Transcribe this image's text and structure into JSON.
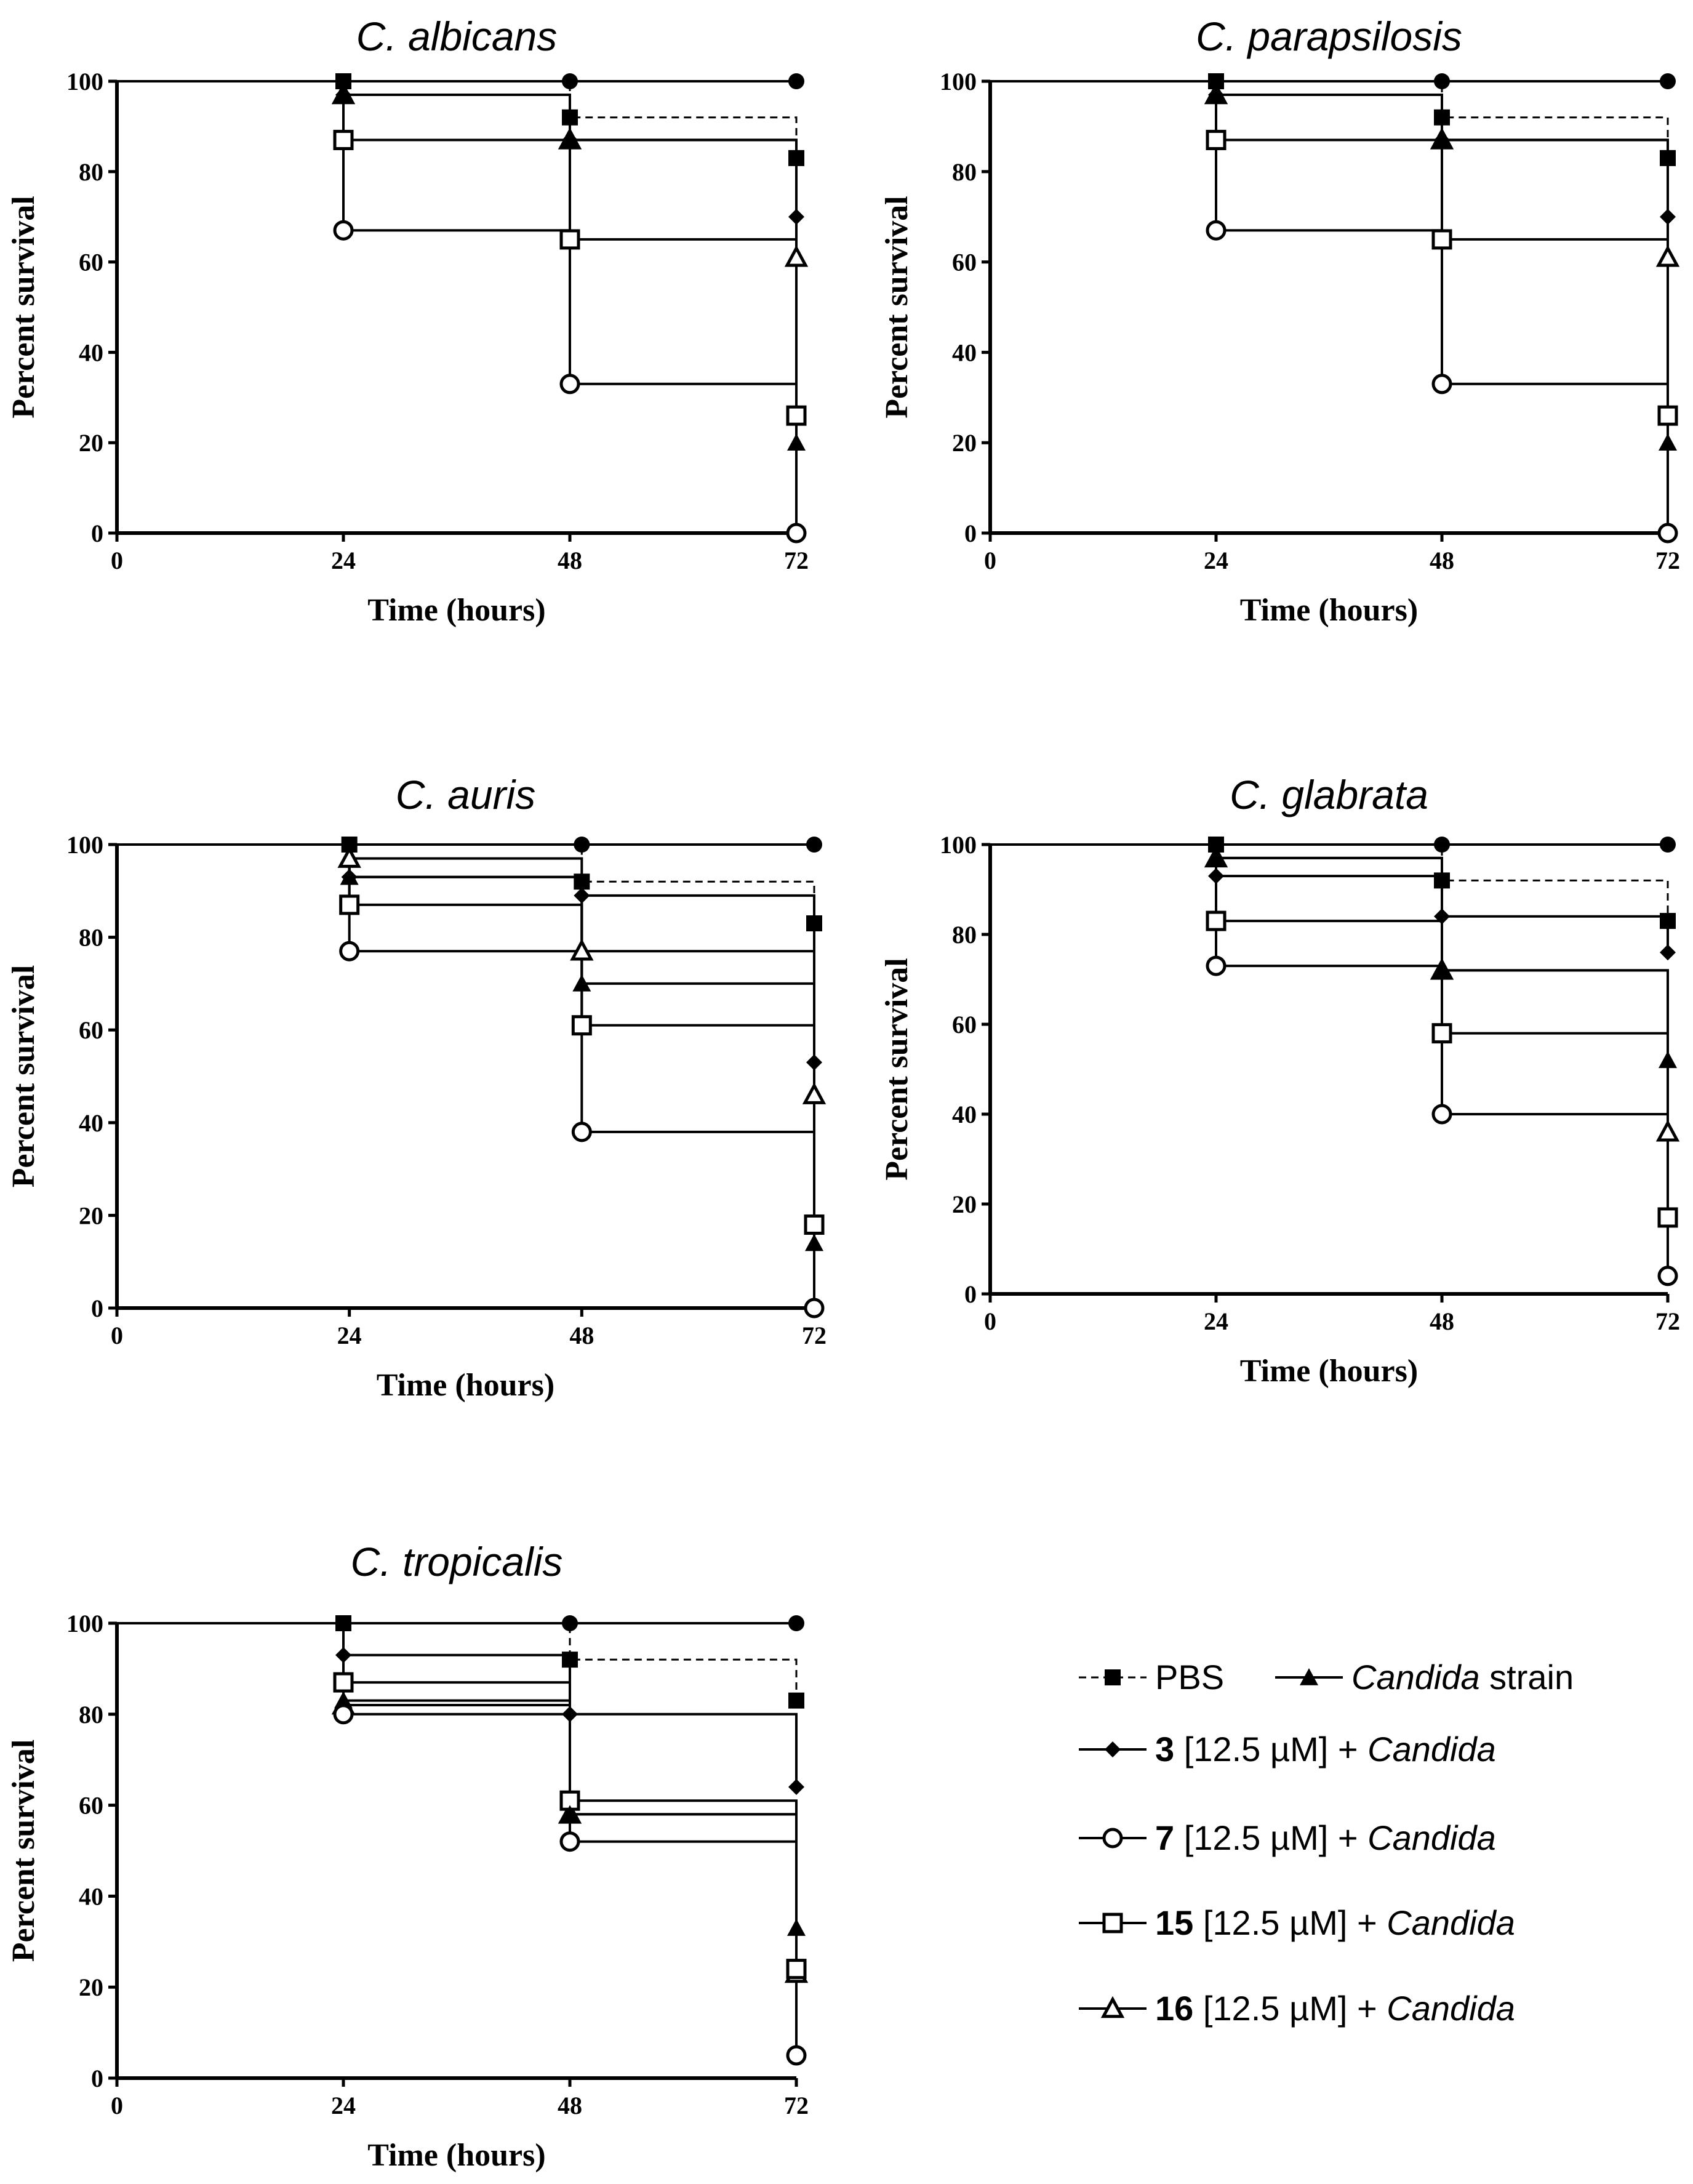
{
  "chart_data": [
    {
      "type": "line",
      "title": "C. albicans",
      "xlabel": "Time (hours)",
      "ylabel": "Percent survival",
      "xlim": [
        0,
        72
      ],
      "ylim": [
        0,
        100
      ],
      "x_ticks": [
        0,
        24,
        48,
        72
      ],
      "y_ticks": [
        0,
        20,
        40,
        60,
        80,
        100
      ],
      "grid": false,
      "series": [
        {
          "key": "ctrl",
          "marker": "filled-circle",
          "dashed": false,
          "x": [
            0,
            24,
            48,
            72
          ],
          "values": [
            100,
            100,
            100,
            100
          ]
        },
        {
          "key": "pbs",
          "marker": "filled-square",
          "dashed": true,
          "x": [
            0,
            24,
            48,
            72
          ],
          "values": [
            100,
            100,
            92,
            83
          ]
        },
        {
          "key": "candida",
          "marker": "filled-triangle",
          "dashed": false,
          "x": [
            0,
            24,
            48,
            72
          ],
          "values": [
            100,
            97,
            87,
            20
          ]
        },
        {
          "key": "c3",
          "marker": "filled-diamond",
          "dashed": false,
          "x": [
            0,
            24,
            48,
            72
          ],
          "values": [
            100,
            97,
            87,
            70
          ]
        },
        {
          "key": "c7",
          "marker": "open-circle",
          "dashed": false,
          "x": [
            0,
            24,
            48,
            72
          ],
          "values": [
            100,
            67,
            33,
            0
          ]
        },
        {
          "key": "c15",
          "marker": "open-square",
          "dashed": false,
          "x": [
            0,
            24,
            48,
            72
          ],
          "values": [
            100,
            87,
            65,
            26
          ]
        },
        {
          "key": "c16",
          "marker": "open-triangle",
          "dashed": false,
          "x": [
            0,
            24,
            48,
            72
          ],
          "values": [
            100,
            97,
            87,
            61
          ]
        }
      ]
    },
    {
      "type": "line",
      "title": "C. parapsilosis",
      "xlabel": "Time (hours)",
      "ylabel": "Percent survival",
      "xlim": [
        0,
        72
      ],
      "ylim": [
        0,
        100
      ],
      "x_ticks": [
        0,
        24,
        48,
        72
      ],
      "y_ticks": [
        0,
        20,
        40,
        60,
        80,
        100
      ],
      "grid": false,
      "series": [
        {
          "key": "ctrl",
          "marker": "filled-circle",
          "dashed": false,
          "x": [
            0,
            24,
            48,
            72
          ],
          "values": [
            100,
            100,
            100,
            100
          ]
        },
        {
          "key": "pbs",
          "marker": "filled-square",
          "dashed": true,
          "x": [
            0,
            24,
            48,
            72
          ],
          "values": [
            100,
            100,
            92,
            83
          ]
        },
        {
          "key": "candida",
          "marker": "filled-triangle",
          "dashed": false,
          "x": [
            0,
            24,
            48,
            72
          ],
          "values": [
            100,
            97,
            87,
            20
          ]
        },
        {
          "key": "c3",
          "marker": "filled-diamond",
          "dashed": false,
          "x": [
            0,
            24,
            48,
            72
          ],
          "values": [
            100,
            97,
            87,
            70
          ]
        },
        {
          "key": "c7",
          "marker": "open-circle",
          "dashed": false,
          "x": [
            0,
            24,
            48,
            72
          ],
          "values": [
            100,
            67,
            33,
            0
          ]
        },
        {
          "key": "c15",
          "marker": "open-square",
          "dashed": false,
          "x": [
            0,
            24,
            48,
            72
          ],
          "values": [
            100,
            87,
            65,
            26
          ]
        },
        {
          "key": "c16",
          "marker": "open-triangle",
          "dashed": false,
          "x": [
            0,
            24,
            48,
            72
          ],
          "values": [
            100,
            97,
            87,
            61
          ]
        }
      ]
    },
    {
      "type": "line",
      "title": "C. auris",
      "xlabel": "Time (hours)",
      "ylabel": "Percent survival",
      "xlim": [
        0,
        72
      ],
      "ylim": [
        0,
        100
      ],
      "x_ticks": [
        0,
        24,
        48,
        72
      ],
      "y_ticks": [
        0,
        20,
        40,
        60,
        80,
        100
      ],
      "grid": false,
      "series": [
        {
          "key": "ctrl",
          "marker": "filled-circle",
          "dashed": false,
          "x": [
            0,
            24,
            48,
            72
          ],
          "values": [
            100,
            100,
            100,
            100
          ]
        },
        {
          "key": "pbs",
          "marker": "filled-square",
          "dashed": true,
          "x": [
            0,
            24,
            48,
            72
          ],
          "values": [
            100,
            100,
            92,
            83
          ]
        },
        {
          "key": "candida",
          "marker": "filled-triangle",
          "dashed": false,
          "x": [
            0,
            24,
            48,
            72
          ],
          "values": [
            100,
            93,
            70,
            14
          ]
        },
        {
          "key": "c3",
          "marker": "filled-diamond",
          "dashed": false,
          "x": [
            0,
            24,
            48,
            72
          ],
          "values": [
            100,
            93,
            89,
            53
          ]
        },
        {
          "key": "c7",
          "marker": "open-circle",
          "dashed": false,
          "x": [
            0,
            24,
            48,
            72
          ],
          "values": [
            100,
            77,
            38,
            0
          ]
        },
        {
          "key": "c15",
          "marker": "open-square",
          "dashed": false,
          "x": [
            0,
            24,
            48,
            72
          ],
          "values": [
            100,
            87,
            61,
            18
          ]
        },
        {
          "key": "c16",
          "marker": "open-triangle",
          "dashed": false,
          "x": [
            0,
            24,
            48,
            72
          ],
          "values": [
            100,
            97,
            77,
            46
          ]
        }
      ]
    },
    {
      "type": "line",
      "title": "C. glabrata",
      "xlabel": "Time (hours)",
      "ylabel": "Percent survival",
      "xlim": [
        0,
        72
      ],
      "ylim": [
        0,
        100
      ],
      "x_ticks": [
        0,
        24,
        48,
        72
      ],
      "y_ticks": [
        0,
        20,
        40,
        60,
        80,
        100
      ],
      "grid": false,
      "series": [
        {
          "key": "ctrl",
          "marker": "filled-circle",
          "dashed": false,
          "x": [
            0,
            24,
            48,
            72
          ],
          "values": [
            100,
            100,
            100,
            100
          ]
        },
        {
          "key": "pbs",
          "marker": "filled-square",
          "dashed": true,
          "x": [
            0,
            24,
            48,
            72
          ],
          "values": [
            100,
            100,
            92,
            83
          ]
        },
        {
          "key": "candida",
          "marker": "filled-triangle",
          "dashed": false,
          "x": [
            0,
            24,
            48,
            72
          ],
          "values": [
            100,
            97,
            72,
            52
          ]
        },
        {
          "key": "c3",
          "marker": "filled-diamond",
          "dashed": false,
          "x": [
            0,
            24,
            48,
            72
          ],
          "values": [
            100,
            93,
            84,
            76
          ]
        },
        {
          "key": "c7",
          "marker": "open-circle",
          "dashed": false,
          "x": [
            0,
            24,
            48,
            72
          ],
          "values": [
            100,
            73,
            40,
            4
          ]
        },
        {
          "key": "c15",
          "marker": "open-square",
          "dashed": false,
          "x": [
            0,
            24,
            48,
            72
          ],
          "values": [
            100,
            83,
            58,
            17
          ]
        },
        {
          "key": "c16",
          "marker": "open-triangle",
          "dashed": false,
          "x": [
            0,
            24,
            48,
            72
          ],
          "values": [
            100,
            97,
            72,
            36
          ]
        }
      ]
    },
    {
      "type": "line",
      "title": "C. tropicalis",
      "xlabel": "Time (hours)",
      "ylabel": "Percent survival",
      "xlim": [
        0,
        72
      ],
      "ylim": [
        0,
        100
      ],
      "x_ticks": [
        0,
        24,
        48,
        72
      ],
      "y_ticks": [
        0,
        20,
        40,
        60,
        80,
        100
      ],
      "grid": false,
      "series": [
        {
          "key": "ctrl",
          "marker": "filled-circle",
          "dashed": false,
          "x": [
            0,
            24,
            48,
            72
          ],
          "values": [
            100,
            100,
            100,
            100
          ]
        },
        {
          "key": "pbs",
          "marker": "filled-square",
          "dashed": true,
          "x": [
            0,
            24,
            48,
            72
          ],
          "values": [
            100,
            100,
            92,
            83
          ]
        },
        {
          "key": "candida",
          "marker": "filled-triangle",
          "dashed": false,
          "x": [
            0,
            24,
            48,
            72
          ],
          "values": [
            100,
            83,
            58,
            33
          ]
        },
        {
          "key": "c3",
          "marker": "filled-diamond",
          "dashed": false,
          "x": [
            0,
            24,
            48,
            72
          ],
          "values": [
            100,
            93,
            80,
            64
          ]
        },
        {
          "key": "c7",
          "marker": "open-circle",
          "dashed": false,
          "x": [
            0,
            24,
            48,
            72
          ],
          "values": [
            100,
            80,
            52,
            5
          ]
        },
        {
          "key": "c15",
          "marker": "open-square",
          "dashed": false,
          "x": [
            0,
            24,
            48,
            72
          ],
          "values": [
            100,
            87,
            61,
            24
          ]
        },
        {
          "key": "c16",
          "marker": "open-triangle",
          "dashed": false,
          "x": [
            0,
            24,
            48,
            72
          ],
          "values": [
            100,
            82,
            58,
            23
          ]
        }
      ]
    }
  ],
  "legend": {
    "placement": "bottom-right",
    "entries": [
      {
        "key": "pbs",
        "marker": "filled-square",
        "dashed": true,
        "parts": [
          {
            "text": "PBS",
            "style": "normal"
          }
        ]
      },
      {
        "key": "candida",
        "marker": "filled-triangle",
        "dashed": false,
        "parts": [
          {
            "text": "Candida",
            "style": "italic"
          },
          {
            "text": " strain",
            "style": "normal"
          }
        ]
      },
      {
        "key": "c3",
        "marker": "filled-diamond",
        "dashed": false,
        "parts": [
          {
            "text": "3",
            "style": "bold"
          },
          {
            "text": " [12.5 µM] + ",
            "style": "normal"
          },
          {
            "text": "Candida",
            "style": "italic"
          }
        ]
      },
      {
        "key": "c7",
        "marker": "open-circle",
        "dashed": false,
        "parts": [
          {
            "text": "7",
            "style": "bold"
          },
          {
            "text": " [12.5 µM] + ",
            "style": "normal"
          },
          {
            "text": "Candida",
            "style": "italic"
          }
        ]
      },
      {
        "key": "c15",
        "marker": "open-square",
        "dashed": false,
        "parts": [
          {
            "text": "15",
            "style": "bold"
          },
          {
            "text": " [12.5 µM] + ",
            "style": "normal"
          },
          {
            "text": "Candida",
            "style": "italic"
          }
        ]
      },
      {
        "key": "c16",
        "marker": "open-triangle",
        "dashed": false,
        "parts": [
          {
            "text": "16",
            "style": "bold"
          },
          {
            "text": " [12.5 µM] + ",
            "style": "normal"
          },
          {
            "text": "Candida",
            "style": "italic"
          }
        ]
      }
    ]
  }
}
